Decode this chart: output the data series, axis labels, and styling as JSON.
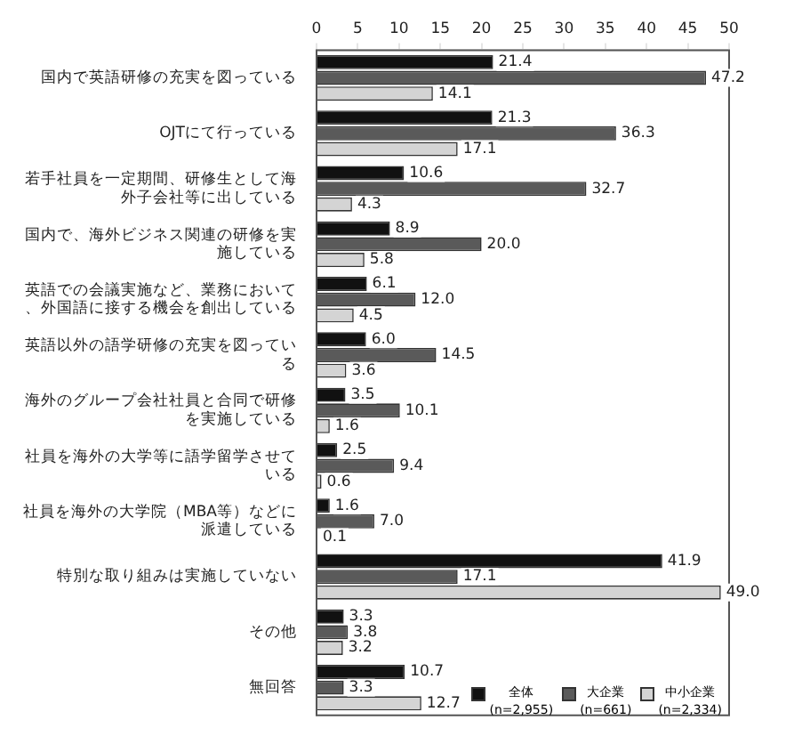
{
  "chart_data": {
    "type": "bar",
    "orientation": "horizontal",
    "categories": [
      "国内で英語研修の充実を図っている",
      "OJTにて行っている",
      "若手社員を一定期間、研修生として海外子会社等に出している",
      "国内で、海外ビジネス関連の研修を実施している",
      "英語での会議実施など、業務において、外国語に接する機会を創出している",
      "英語以外の語学研修の充実を図っている",
      "海外のグループ会社社員と合同で研修を実施している",
      "社員を海外の大学等に語学留学させている",
      "社員を海外の大学院（MBA等）などに派遣している",
      "特別な取り組みは実施していない",
      "その他",
      "無回答"
    ],
    "series": [
      {
        "name": "全体\n(n=2,955)",
        "color": "#111111",
        "values": [
          21.4,
          21.3,
          10.6,
          8.9,
          6.1,
          6.0,
          3.5,
          2.5,
          1.6,
          41.9,
          3.3,
          10.7
        ]
      },
      {
        "name": "大企業\n(n=661)",
        "color": "#5a5a5a",
        "values": [
          47.2,
          36.3,
          32.7,
          20.0,
          12.0,
          14.5,
          10.1,
          9.4,
          7.0,
          17.1,
          3.8,
          3.3
        ]
      },
      {
        "name": "中小企業\n(n=2,334)",
        "color": "#d4d4d4",
        "values": [
          14.1,
          17.1,
          4.3,
          5.8,
          4.5,
          3.6,
          1.6,
          0.6,
          0.1,
          49.0,
          3.2,
          12.7
        ]
      }
    ],
    "xlim": [
      0,
      50
    ],
    "xticks": [
      0,
      5,
      10,
      15,
      20,
      25,
      30,
      35,
      40,
      45,
      50
    ],
    "value_labels": [
      [
        "21.4",
        "21.3",
        "10.6",
        "8.9",
        "6.1",
        "6.0",
        "3.5",
        "2.5",
        "1.6",
        "41.9",
        "3.3",
        "10.7"
      ],
      [
        "47.2",
        "36.3",
        "32.7",
        "20.0",
        "12.0",
        "14.5",
        "10.1",
        "9.4",
        "7.0",
        "17.1",
        "3.8",
        "3.3"
      ],
      [
        "14.1",
        "17.1",
        "4.3",
        "5.8",
        "4.5",
        "3.6",
        "1.6",
        "0.6",
        "0.1",
        "49.0",
        "3.2",
        "12.7"
      ]
    ],
    "grid": false,
    "legend": "bottom right"
  }
}
